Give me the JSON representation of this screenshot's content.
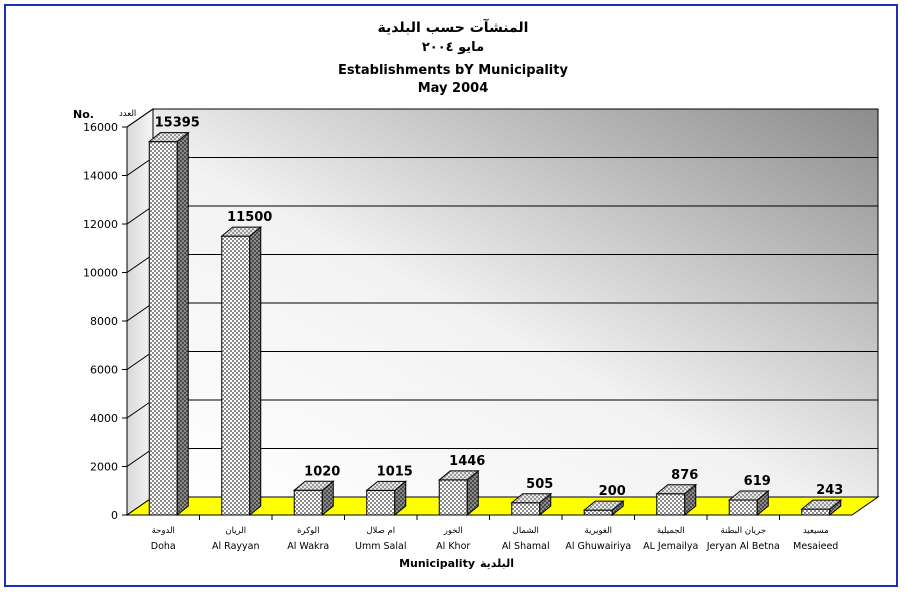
{
  "chart_data": {
    "type": "bar",
    "title_ar": "المنشآت حسب البلدية",
    "subtitle_ar": "مايو ٢٠٠٤",
    "title": "Establishments bY Municipality",
    "subtitle": "May 2004",
    "ylabel_en": "No.",
    "ylabel_ar": "العدد",
    "xlabel_en": "Municipality",
    "xlabel_ar": "البلدية",
    "ylim": [
      0,
      16000
    ],
    "yticks": [
      0,
      2000,
      4000,
      6000,
      8000,
      10000,
      12000,
      14000,
      16000
    ],
    "grid": true,
    "categories": [
      {
        "ar": "الدوحة",
        "en": "Doha"
      },
      {
        "ar": "الريان",
        "en": "Al Rayyan"
      },
      {
        "ar": "الوكرة",
        "en": "Al Wakra"
      },
      {
        "ar": "ام صلال",
        "en": "Umm Salal"
      },
      {
        "ar": "الخور",
        "en": "Al Khor"
      },
      {
        "ar": "الشمال",
        "en": "Al Shamal"
      },
      {
        "ar": "الغويرية",
        "en": "Al Ghuwairiya"
      },
      {
        "ar": "الجميلية",
        "en": "AL Jemailya"
      },
      {
        "ar": "جريان البطنة",
        "en": "Jeryan Al Betna"
      },
      {
        "ar": "مسيعيد",
        "en": "Mesaieed"
      }
    ],
    "values": [
      15395,
      11500,
      1020,
      1015,
      1446,
      505,
      200,
      876,
      619,
      243
    ],
    "colors": {
      "frame": "#1f2fb5",
      "floor": "#ffff00",
      "bar_pattern_light": "#ffffff",
      "bar_pattern_dark": "#8a8a8a",
      "bar_side": "#6a6a6a",
      "bar_top": "#bdbdbd",
      "wall_dark": "#8c8c8c",
      "wall_light": "#ffffff"
    }
  }
}
